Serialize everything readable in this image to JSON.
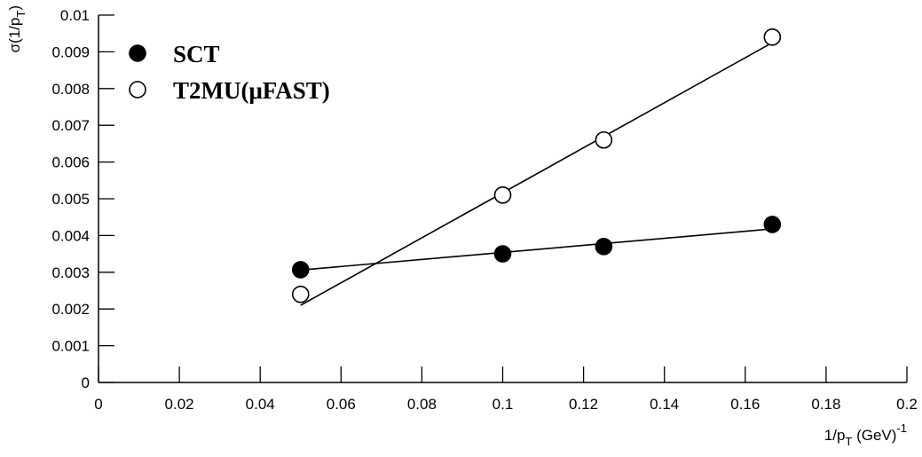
{
  "chart_data": {
    "type": "scatter",
    "ylabel": {
      "main": "σ(1/p",
      "sub": "T",
      "end": ")"
    },
    "xlabel": {
      "main": "1/p",
      "sub": "T",
      "end": " (GeV)",
      "sup": "-1"
    },
    "xlim": [
      0,
      0.2
    ],
    "ylim": [
      0,
      0.01
    ],
    "xticks": [
      0,
      0.02,
      0.04,
      0.06,
      0.08,
      0.1,
      0.12,
      0.14,
      0.16,
      0.18,
      0.2
    ],
    "yticks": [
      0,
      0.001,
      0.002,
      0.003,
      0.004,
      0.005,
      0.006,
      0.007,
      0.008,
      0.009,
      0.01
    ],
    "legend": "upper left",
    "series": [
      {
        "name": "SCT",
        "marker": "filled",
        "color": "#000000",
        "x": [
          0.05,
          0.1,
          0.125,
          0.1667
        ],
        "values": [
          0.00307,
          0.0035,
          0.0037,
          0.0043
        ],
        "fit": {
          "x": [
            0.05,
            0.1667
          ],
          "values": [
            0.00306,
            0.00418
          ]
        }
      },
      {
        "name": "T2MU(μFAST)",
        "marker": "open",
        "color": "#000000",
        "x": [
          0.05,
          0.1,
          0.125,
          0.1667
        ],
        "values": [
          0.0024,
          0.0051,
          0.0066,
          0.0094
        ],
        "fit": {
          "x": [
            0.05,
            0.1667
          ],
          "values": [
            0.0021,
            0.00925
          ]
        }
      }
    ]
  }
}
